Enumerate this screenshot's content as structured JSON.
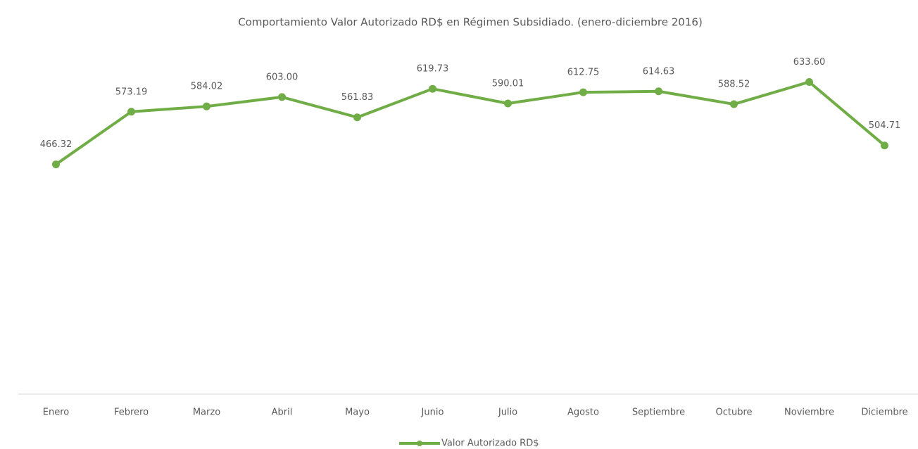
{
  "chart_data": {
    "type": "line",
    "title": "Comportamiento Valor Autorizado RD$ en Régimen Subsidiado. (enero-diciembre 2016)",
    "categories": [
      "Enero",
      "Febrero",
      "Marzo",
      "Abril",
      "Mayo",
      "Junio",
      "Julio",
      "Agosto",
      "Septiembre",
      "Octubre",
      "Noviembre",
      "Diciembre"
    ],
    "series": [
      {
        "name": "Valor Autorizado RD$",
        "color": "#70ad47",
        "values": [
          466.32,
          573.19,
          584.02,
          603.0,
          561.83,
          619.73,
          590.01,
          612.75,
          614.63,
          588.52,
          633.6,
          504.71
        ],
        "value_labels": [
          "466.32",
          "573.19",
          "584.02",
          "603.00",
          "561.83",
          "619.73",
          "590.01",
          "612.75",
          "614.63",
          "588.52",
          "633.60",
          "504.71"
        ]
      }
    ],
    "ylim": [
      0,
      700
    ],
    "legend": "bottom"
  }
}
